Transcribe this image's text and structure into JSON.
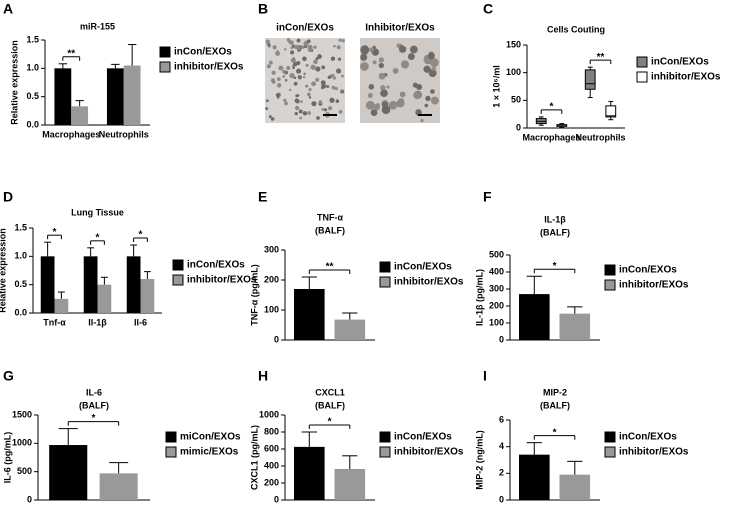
{
  "chart_data": [
    {
      "panel": "A",
      "type": "bar",
      "title": "miR-155",
      "y_label": "Relative expression",
      "categories": [
        "Macrophages",
        "Neutrophils"
      ],
      "series": [
        {
          "name": "inCon/EXOs",
          "color": "#000000",
          "values": [
            1.0,
            1.0
          ],
          "errors": [
            0.08,
            0.07
          ]
        },
        {
          "name": "inhibitor/EXOs",
          "color": "#999999",
          "values": [
            0.33,
            1.05
          ],
          "errors": [
            0.1,
            0.37
          ]
        }
      ],
      "ylim": [
        0,
        1.5
      ],
      "yticks": [
        {
          "value": 0,
          "label": "0.0"
        },
        {
          "value": 0.5,
          "label": "0.5"
        },
        {
          "value": 1,
          "label": "1.0"
        },
        {
          "value": 1.5,
          "label": "1.5"
        }
      ],
      "annotations": [
        "**",
        null
      ]
    },
    {
      "panel": "B",
      "type": "image",
      "labels": [
        "inCon/EXOs",
        "Inhibitor/EXOs"
      ]
    },
    {
      "panel": "C",
      "type": "box",
      "title": "Cells Couting",
      "y_label": "1 × 10⁶/ml",
      "categories": [
        "Macrophages",
        "Neutrophils"
      ],
      "series": [
        {
          "name": "inCon/EXOs",
          "color": "#808080",
          "min": [
            5,
            55
          ],
          "q1": [
            8,
            70
          ],
          "median": [
            12,
            80
          ],
          "q3": [
            17,
            105
          ],
          "max": [
            20,
            110
          ]
        },
        {
          "name": "inhibitor/EXOs",
          "color": "#ffffff",
          "min": [
            1,
            15
          ],
          "q1": [
            3,
            20
          ],
          "median": [
            5,
            22
          ],
          "q3": [
            6,
            40
          ],
          "max": [
            8,
            48
          ]
        }
      ],
      "ylim": [
        0,
        150
      ],
      "yticks": [
        0,
        50,
        100,
        150
      ],
      "annotations": [
        "*",
        "**"
      ]
    },
    {
      "panel": "D",
      "type": "bar",
      "title": "Lung Tissue",
      "y_label": "Relative expression",
      "categories": [
        "Tnf-α",
        "Il-1β",
        "Il-6"
      ],
      "series": [
        {
          "name": "inCon/EXOs",
          "color": "#000000",
          "values": [
            1.0,
            1.0,
            1.0
          ],
          "errors": [
            0.25,
            0.15,
            0.2
          ]
        },
        {
          "name": "inhibitor/EXOs",
          "color": "#999999",
          "values": [
            0.25,
            0.5,
            0.6
          ],
          "errors": [
            0.12,
            0.13,
            0.13
          ]
        }
      ],
      "ylim": [
        0,
        1.5
      ],
      "yticks": [
        {
          "value": 0,
          "label": "0.0"
        },
        {
          "value": 0.5,
          "label": "0.5"
        },
        {
          "value": 1,
          "label": "1.0"
        },
        {
          "value": 1.5,
          "label": "1.5"
        }
      ],
      "annotations": [
        "*",
        "*",
        "*"
      ]
    },
    {
      "panel": "E",
      "type": "bar",
      "title": "TNF-α",
      "subtitle": "(BALF)",
      "y_label": "TNF-α (pg/mL)",
      "categories": [
        null
      ],
      "series": [
        {
          "name": "inCon/EXOs",
          "color": "#000000",
          "values": [
            170
          ],
          "errors": [
            40
          ]
        },
        {
          "name": "inhibitor/EXOs",
          "color": "#999999",
          "values": [
            68
          ],
          "errors": [
            22
          ]
        }
      ],
      "ylim": [
        0,
        300
      ],
      "yticks": [
        0,
        100,
        200,
        300
      ],
      "annotations": [
        "**"
      ]
    },
    {
      "panel": "F",
      "type": "bar",
      "title": "IL-1β",
      "subtitle": "(BALF)",
      "y_label": "IL-1β (pg/mL)",
      "categories": [
        null
      ],
      "series": [
        {
          "name": "inCon/EXOs",
          "color": "#000000",
          "values": [
            270
          ],
          "errors": [
            105
          ]
        },
        {
          "name": "inhibitor/EXOs",
          "color": "#999999",
          "values": [
            155
          ],
          "errors": [
            40
          ]
        }
      ],
      "ylim": [
        0,
        500
      ],
      "yticks": [
        0,
        100,
        200,
        300,
        400,
        500
      ],
      "annotations": [
        "*"
      ]
    },
    {
      "panel": "G",
      "type": "bar",
      "title": "IL-6",
      "subtitle": "(BALF)",
      "y_label": "IL-6 (pg/mL)",
      "categories": [
        null
      ],
      "series": [
        {
          "name": "miCon/EXOs",
          "color": "#000000",
          "values": [
            970
          ],
          "errors": [
            290
          ]
        },
        {
          "name": "mimic/EXOs",
          "color": "#999999",
          "values": [
            470
          ],
          "errors": [
            190
          ]
        }
      ],
      "ylim": [
        0,
        1500
      ],
      "yticks": [
        0,
        500,
        1000,
        1500
      ],
      "annotations": [
        "*"
      ]
    },
    {
      "panel": "H",
      "type": "bar",
      "title": "CXCL1",
      "subtitle": "(BALF)",
      "y_label": "CXCL1 (pg/mL)",
      "categories": [
        null
      ],
      "series": [
        {
          "name": "inCon/EXOs",
          "color": "#000000",
          "values": [
            625
          ],
          "errors": [
            175
          ]
        },
        {
          "name": "inhibitor/EXOs",
          "color": "#999999",
          "values": [
            365
          ],
          "errors": [
            155
          ]
        }
      ],
      "ylim": [
        0,
        1000
      ],
      "yticks": [
        0,
        200,
        400,
        600,
        800,
        1000
      ],
      "annotations": [
        "*"
      ]
    },
    {
      "panel": "I",
      "type": "bar",
      "title": "MIP-2",
      "subtitle": "(BALF)",
      "y_label": "MIP-2 (ng/mL)",
      "categories": [
        null
      ],
      "series": [
        {
          "name": "inCon/EXOs",
          "color": "#000000",
          "values": [
            3.4
          ],
          "errors": [
            0.9
          ]
        },
        {
          "name": "inhibitor/EXOs",
          "color": "#999999",
          "values": [
            1.9
          ],
          "errors": [
            1.0
          ]
        }
      ],
      "ylim": [
        0,
        6
      ],
      "yticks": [
        0,
        2,
        4,
        6
      ],
      "annotations": [
        "*"
      ]
    }
  ]
}
